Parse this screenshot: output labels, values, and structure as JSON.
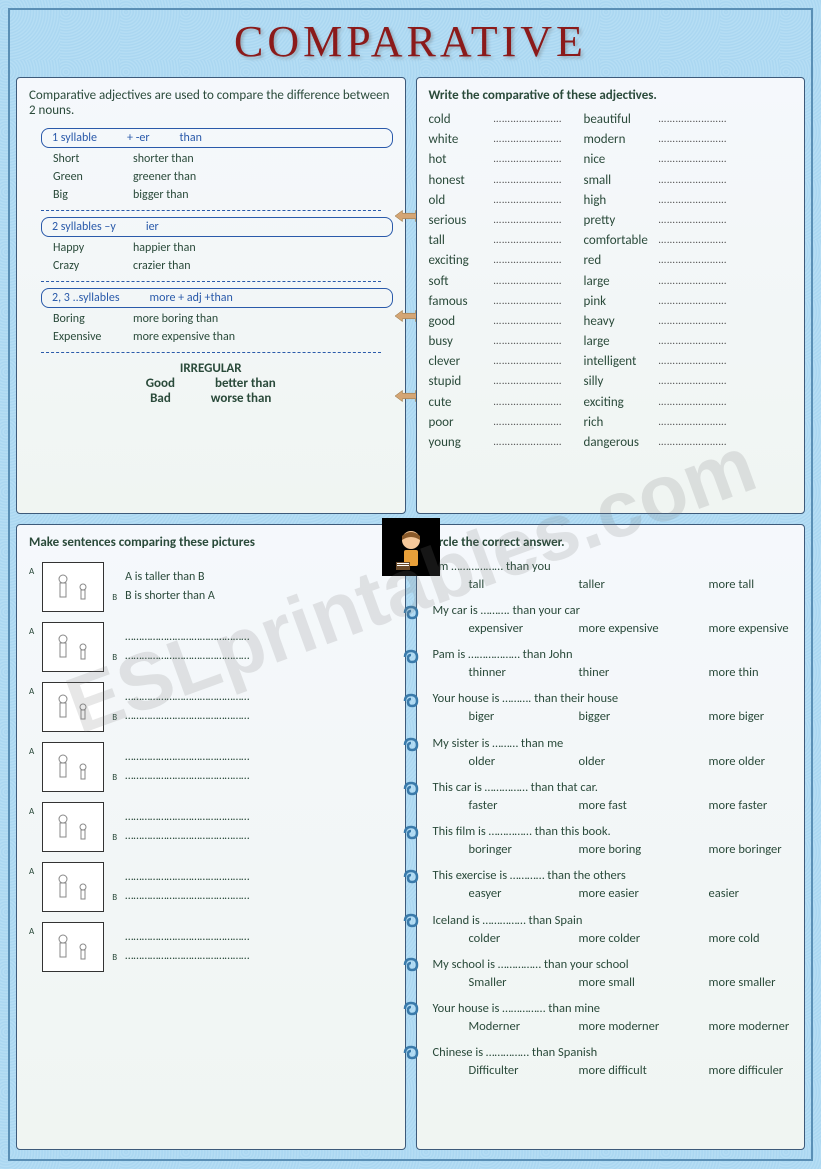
{
  "title": "COMPARATIVE",
  "watermark": "ESLprintables.com",
  "panel1": {
    "intro": "Comparative adjectives are used to compare the difference between 2 nouns.",
    "rules": [
      {
        "heading": [
          "1 syllable",
          "+ -er",
          "than"
        ],
        "examples": [
          [
            "Short",
            "shorter than"
          ],
          [
            "Green",
            "greener than"
          ],
          [
            "Big",
            "bigger than"
          ]
        ]
      },
      {
        "heading": [
          "2 syllables –y",
          "ier",
          ""
        ],
        "examples": [
          [
            "Happy",
            "happier than"
          ],
          [
            "Crazy",
            "crazier than"
          ]
        ]
      },
      {
        "heading": [
          "2, 3 ..syllables",
          "more + adj +than",
          ""
        ],
        "examples": [
          [
            "Boring",
            "more  boring than"
          ],
          [
            "Expensive",
            "more expensive than"
          ]
        ]
      }
    ],
    "irregular_label": "IRREGULAR",
    "irregular": [
      [
        "Good",
        "better than"
      ],
      [
        "Bad",
        "worse than"
      ]
    ]
  },
  "panel2": {
    "header": "Write the comparative of these adjectives.",
    "rows": [
      [
        "cold",
        "beautiful"
      ],
      [
        "white",
        "modern"
      ],
      [
        "hot",
        "nice"
      ],
      [
        "honest",
        "small"
      ],
      [
        "old",
        "high"
      ],
      [
        "serious",
        "pretty"
      ],
      [
        "tall",
        "comfortable"
      ],
      [
        "exciting",
        "red"
      ],
      [
        "soft",
        "large"
      ],
      [
        "famous",
        "pink"
      ],
      [
        "good",
        "heavy"
      ],
      [
        "busy",
        "large"
      ],
      [
        "clever",
        "intelligent"
      ],
      [
        "stupid",
        "silly"
      ],
      [
        "cute",
        "exciting"
      ],
      [
        "poor",
        "rich"
      ],
      [
        "young",
        "dangerous"
      ]
    ]
  },
  "panel3": {
    "header": "Make sentences comparing these pictures",
    "items": [
      {
        "lines": [
          "A is taller than B",
          "B is shorter than A"
        ]
      },
      {
        "lines": [
          "………………………………………",
          "………………………………………"
        ]
      },
      {
        "lines": [
          "………………………………………",
          "………………………………………"
        ]
      },
      {
        "lines": [
          "………………………………………",
          "………………………………………"
        ]
      },
      {
        "lines": [
          "………………………………………",
          "………………………………………"
        ]
      },
      {
        "lines": [
          "………………………………………",
          "………………………………………"
        ]
      },
      {
        "lines": [
          "………………………………………",
          "………………………………………"
        ]
      }
    ]
  },
  "panel4": {
    "header": "Circle the correct answer.",
    "items": [
      {
        "q": "I'm ……………… than you",
        "opts": [
          "tall",
          "taller",
          "more tall"
        ]
      },
      {
        "q": "My car is ………. than your car",
        "opts": [
          "expensiver",
          "more expensive",
          "more expensive"
        ]
      },
      {
        "q": "Pam is ……………… than John",
        "opts": [
          "thinner",
          "thiner",
          "more thin"
        ]
      },
      {
        "q": "Your house is ………. than their house",
        "opts": [
          "biger",
          "bigger",
          "more biger"
        ]
      },
      {
        "q": "My sister is ……… than me",
        "opts": [
          "older",
          "older",
          "more older"
        ]
      },
      {
        "q": "This car is …………… than that car.",
        "opts": [
          "faster",
          "more fast",
          "more faster"
        ]
      },
      {
        "q": "This film is …………… than this book.",
        "opts": [
          "boringer",
          "more boring",
          "more boringer"
        ]
      },
      {
        "q": "This exercise  is ………… than the others",
        "opts": [
          "easyer",
          "more easier",
          "easier"
        ]
      },
      {
        "q": "Iceland is …………… than Spain",
        "opts": [
          "colder",
          "more colder",
          "more cold"
        ]
      },
      {
        "q": "My school is …………… than your school",
        "opts": [
          "Smaller",
          "more small",
          "more smaller"
        ]
      },
      {
        "q": "Your house is …………… than mine",
        "opts": [
          "Moderner",
          "more moderner",
          "more moderner"
        ]
      },
      {
        "q": "Chinese is …………… than Spanish",
        "opts": [
          "Difficulter",
          "more difficult",
          "more difficuler"
        ]
      }
    ]
  }
}
